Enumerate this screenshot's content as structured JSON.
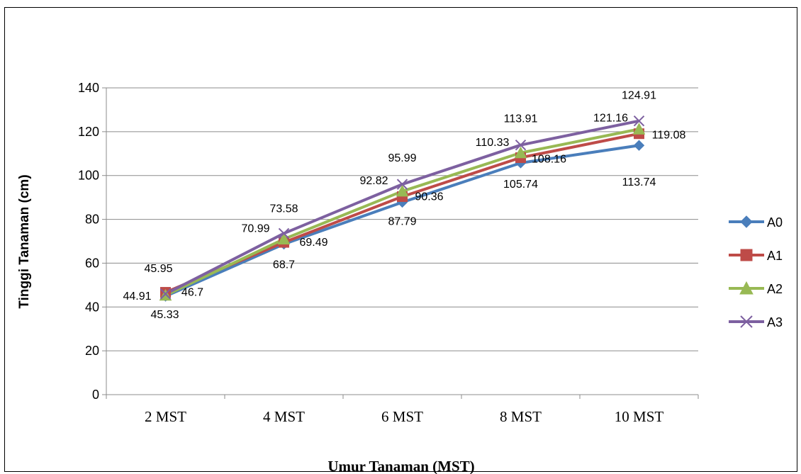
{
  "chart_data": {
    "type": "line",
    "title": "",
    "xlabel": "Umur Tanaman (MST)",
    "ylabel": "Tinggi Tanaman (cm)",
    "categories": [
      "2 MST",
      "4 MST",
      "6 MST",
      "8 MST",
      "10 MST"
    ],
    "ylim": [
      0,
      140
    ],
    "yticks": [
      0,
      20,
      40,
      60,
      80,
      100,
      120,
      140
    ],
    "grid": true,
    "legend_position": "right",
    "series": [
      {
        "name": "A0",
        "color": "#4a7ebb",
        "marker": "diamond",
        "values": [
          44.91,
          68.7,
          87.79,
          105.74,
          113.74
        ],
        "labels": [
          "44.91",
          "68.7",
          "87.79",
          "105.74",
          "113.74"
        ]
      },
      {
        "name": "A1",
        "color": "#be4b48",
        "marker": "square",
        "values": [
          46.7,
          69.49,
          90.36,
          108.16,
          119.08
        ],
        "labels": [
          "46.7",
          "69.49",
          "90.36",
          "108.16",
          "119.08"
        ]
      },
      {
        "name": "A2",
        "color": "#98b954",
        "marker": "triangle",
        "values": [
          45.33,
          70.99,
          92.82,
          110.33,
          121.16
        ],
        "labels": [
          "45.33",
          "70.99",
          "92.82",
          "110.33",
          "121.16"
        ]
      },
      {
        "name": "A3",
        "color": "#7d60a0",
        "marker": "x",
        "values": [
          45.95,
          73.58,
          95.99,
          113.91,
          124.91
        ],
        "labels": [
          "45.95",
          "73.58",
          "95.99",
          "113.91",
          "124.91"
        ]
      }
    ]
  }
}
